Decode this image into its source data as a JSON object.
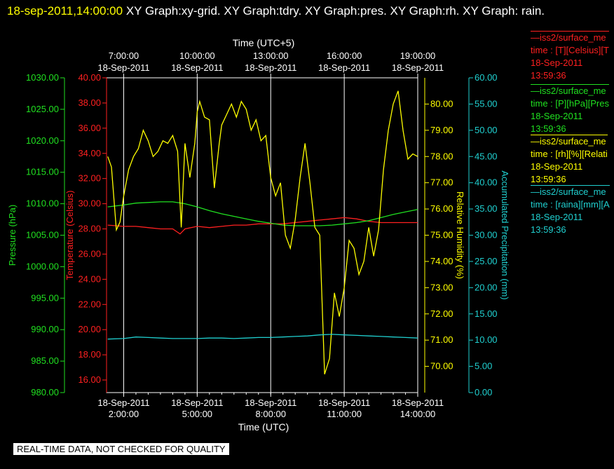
{
  "title": {
    "timestamp": "18-sep-2011,14:00:00",
    "graphs": "XY Graph:xy-grid.  XY Graph:tdry.  XY Graph:pres.  XY Graph:rh.  XY Graph: rain."
  },
  "footer_warning": "REAL-TIME DATA, NOT CHECKED FOR QUALITY",
  "legend": [
    {
      "name": "—iss2/surface_me",
      "field": "time : [T][Celsius][T",
      "date": "18-Sep-2011",
      "time": "13:59:36",
      "color": "#ff2020"
    },
    {
      "name": "—iss2/surface_me",
      "field": "time : [P][hPa][Pres",
      "date": "18-Sep-2011",
      "time": "13:59:36",
      "color": "#20e020"
    },
    {
      "name": "—iss2/surface_me",
      "field": "time : [rh][%][Relati",
      "date": "18-Sep-2011",
      "time": "13:59:36",
      "color": "#ffff00"
    },
    {
      "name": "—iss2/surface_me",
      "field": "time : [raina][mm][A",
      "date": "18-Sep-2011",
      "time": "13:59:36",
      "color": "#20d0d0"
    }
  ],
  "chart_data": {
    "type": "line",
    "x_axis_bottom": {
      "label": "Time (UTC)",
      "ticks": [
        {
          "date": "18-Sep-2011",
          "time": "2:00:00"
        },
        {
          "date": "18-Sep-2011",
          "time": "5:00:00"
        },
        {
          "date": "18-Sep-2011",
          "time": "8:00:00"
        },
        {
          "date": "18-Sep-2011",
          "time": "11:00:00"
        },
        {
          "date": "18-Sep-2011",
          "time": "14:00:00"
        }
      ]
    },
    "x_axis_top": {
      "label": "Time (UTC+5)",
      "ticks": [
        {
          "time": "7:00:00",
          "date": "18-Sep-2011"
        },
        {
          "time": "10:00:00",
          "date": "18-Sep-2011"
        },
        {
          "time": "13:00:00",
          "date": "18-Sep-2011"
        },
        {
          "time": "16:00:00",
          "date": "18-Sep-2011"
        },
        {
          "time": "19:00:00",
          "date": "18-Sep-2011"
        }
      ]
    },
    "x_range_hours_utc": [
      1.3,
      14.0
    ],
    "grid": true,
    "axes": {
      "pressure": {
        "label": "Pressure (hPa)",
        "color": "#20e020",
        "range": [
          980,
          1030
        ],
        "ticks": [
          "1030.00",
          "1025.00",
          "1020.00",
          "1015.00",
          "1010.00",
          "1005.00",
          "1000.00",
          "995.00",
          "990.00",
          "985.00",
          "980.00"
        ]
      },
      "temperature": {
        "label": "Temperature (Celsius)",
        "color": "#ff2020",
        "range": [
          15,
          40
        ],
        "ticks": [
          "40.00",
          "38.00",
          "36.00",
          "34.00",
          "32.00",
          "30.00",
          "28.00",
          "26.00",
          "24.00",
          "22.00",
          "20.00",
          "18.00",
          "16.00"
        ]
      },
      "rh": {
        "label": "Relative Humidity (%)",
        "color": "#ffff00",
        "range": [
          69.0,
          81.0
        ],
        "ticks": [
          "80.00",
          "79.00",
          "78.00",
          "77.00",
          "76.00",
          "75.00",
          "74.00",
          "73.00",
          "72.00",
          "71.00",
          "70.00"
        ]
      },
      "rain": {
        "label": "Accumulated Precipitation (mm)",
        "color": "#20d0d0",
        "range": [
          0,
          60
        ],
        "ticks": [
          "60.00",
          "55.00",
          "50.00",
          "45.00",
          "40.00",
          "35.00",
          "30.00",
          "25.00",
          "20.00",
          "15.00",
          "10.00",
          "5.00",
          "0.00"
        ]
      }
    },
    "series": [
      {
        "name": "iss2/surface_me T",
        "axis": "temperature",
        "color": "#ff2020",
        "x": [
          1.35,
          2.0,
          2.5,
          3.0,
          3.5,
          4.0,
          4.3,
          4.5,
          5.0,
          5.5,
          6.0,
          6.5,
          7.0,
          7.5,
          8.0,
          8.5,
          9.0,
          9.5,
          10.0,
          10.5,
          11.0,
          11.5,
          12.0,
          12.5,
          13.0,
          13.5,
          14.0
        ],
        "y": [
          28.3,
          28.2,
          28.2,
          28.1,
          28.0,
          28.0,
          27.6,
          28.0,
          28.2,
          28.1,
          28.2,
          28.3,
          28.3,
          28.4,
          28.4,
          28.4,
          28.5,
          28.6,
          28.7,
          28.8,
          28.9,
          28.8,
          28.6,
          28.5,
          28.5,
          28.5,
          28.5
        ]
      },
      {
        "name": "iss2/surface_me P",
        "axis": "pressure",
        "color": "#20e020",
        "x": [
          1.35,
          2.0,
          2.5,
          3.0,
          3.5,
          4.0,
          4.5,
          5.0,
          5.5,
          6.0,
          6.5,
          7.0,
          7.5,
          8.0,
          8.5,
          9.0,
          9.5,
          10.0,
          10.5,
          11.0,
          11.5,
          12.0,
          12.5,
          13.0,
          13.5,
          14.0
        ],
        "y": [
          1009.5,
          1009.8,
          1010.1,
          1010.2,
          1010.3,
          1010.3,
          1010.0,
          1009.5,
          1008.9,
          1008.4,
          1008.0,
          1007.6,
          1007.2,
          1006.9,
          1006.6,
          1006.5,
          1006.5,
          1006.5,
          1006.6,
          1006.8,
          1007.0,
          1007.3,
          1007.8,
          1008.3,
          1008.7,
          1009.1
        ]
      },
      {
        "name": "iss2/surface_me rh",
        "axis": "rh",
        "color": "#ffff00",
        "x": [
          1.35,
          1.5,
          1.7,
          1.85,
          2.0,
          2.2,
          2.4,
          2.6,
          2.8,
          3.0,
          3.2,
          3.4,
          3.6,
          3.8,
          4.0,
          4.2,
          4.35,
          4.5,
          4.7,
          4.9,
          5.0,
          5.1,
          5.3,
          5.5,
          5.7,
          5.9,
          6.0,
          6.2,
          6.4,
          6.6,
          6.8,
          7.0,
          7.2,
          7.4,
          7.6,
          7.8,
          8.0,
          8.2,
          8.4,
          8.6,
          8.8,
          9.0,
          9.2,
          9.4,
          9.6,
          9.8,
          10.0,
          10.2,
          10.4,
          10.6,
          10.8,
          11.0,
          11.2,
          11.4,
          11.6,
          11.8,
          12.0,
          12.2,
          12.4,
          12.6,
          12.8,
          13.0,
          13.2,
          13.4,
          13.6,
          13.8,
          14.0
        ],
        "y": [
          78.0,
          77.6,
          75.2,
          75.5,
          76.5,
          77.5,
          78.0,
          78.3,
          79.0,
          78.6,
          78.0,
          78.2,
          78.6,
          78.5,
          78.8,
          78.2,
          75.3,
          78.5,
          77.2,
          78.5,
          79.7,
          80.1,
          79.5,
          79.4,
          76.8,
          78.5,
          79.2,
          79.6,
          80.0,
          79.5,
          80.1,
          79.8,
          79.0,
          79.4,
          78.6,
          78.8,
          77.2,
          76.5,
          77.0,
          75.0,
          74.5,
          75.6,
          77.2,
          78.5,
          77.0,
          75.3,
          75.0,
          69.7,
          70.3,
          72.8,
          71.9,
          73.0,
          74.8,
          74.5,
          73.5,
          74.0,
          75.3,
          74.2,
          75.2,
          77.5,
          79.0,
          80.0,
          80.5,
          79.0,
          77.9,
          78.1,
          78.0
        ]
      },
      {
        "name": "iss2/surface_me raina",
        "axis": "rain",
        "color": "#20d0d0",
        "x": [
          1.35,
          2.0,
          2.5,
          3.0,
          3.5,
          4.0,
          4.5,
          5.0,
          5.5,
          6.0,
          6.5,
          7.0,
          7.5,
          8.0,
          8.5,
          9.0,
          9.5,
          10.0,
          10.5,
          11.0,
          11.5,
          12.0,
          12.5,
          13.0,
          13.5,
          14.0
        ],
        "y": [
          10.2,
          10.3,
          10.6,
          10.5,
          10.4,
          10.3,
          10.3,
          10.3,
          10.4,
          10.4,
          10.3,
          10.4,
          10.5,
          10.5,
          10.6,
          10.7,
          10.8,
          11.0,
          11.1,
          11.0,
          10.9,
          10.8,
          10.7,
          10.6,
          10.5,
          10.4
        ]
      }
    ]
  }
}
